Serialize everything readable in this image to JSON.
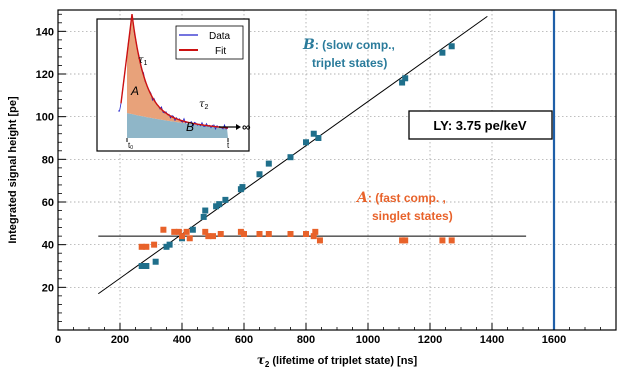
{
  "chart_data": {
    "type": "scatter",
    "xlabel_tau": "τ",
    "xlabel_sub": "2",
    "xlabel_rest": " (lifetime of triplet state) [ns]",
    "ylabel": "Integrated signal height [pe]",
    "xlim": [
      0,
      1800
    ],
    "ylim": [
      0,
      150
    ],
    "x_ticks": [
      0,
      200,
      400,
      600,
      800,
      1000,
      1200,
      1400,
      1600
    ],
    "y_ticks": [
      20,
      40,
      60,
      80,
      100,
      120,
      140
    ],
    "grid": true,
    "series": [
      {
        "name": "B",
        "color": "#1f6f8b",
        "points": [
          [
            270,
            30
          ],
          [
            285,
            30
          ],
          [
            315,
            32
          ],
          [
            350,
            39
          ],
          [
            360,
            40
          ],
          [
            400,
            43
          ],
          [
            435,
            47
          ],
          [
            470,
            53
          ],
          [
            475,
            56
          ],
          [
            510,
            58
          ],
          [
            520,
            59
          ],
          [
            540,
            61
          ],
          [
            590,
            66
          ],
          [
            595,
            67
          ],
          [
            650,
            73
          ],
          [
            680,
            78
          ],
          [
            750,
            81
          ],
          [
            800,
            88
          ],
          [
            825,
            92
          ],
          [
            840,
            90
          ],
          [
            1110,
            116
          ],
          [
            1120,
            118
          ],
          [
            1240,
            130
          ],
          [
            1270,
            133
          ]
        ]
      },
      {
        "name": "A",
        "color": "#e8622a",
        "points": [
          [
            270,
            39
          ],
          [
            285,
            39
          ],
          [
            310,
            40
          ],
          [
            340,
            47
          ],
          [
            375,
            46
          ],
          [
            390,
            46
          ],
          [
            400,
            44
          ],
          [
            415,
            46
          ],
          [
            425,
            43
          ],
          [
            475,
            46
          ],
          [
            485,
            44
          ],
          [
            500,
            44
          ],
          [
            525,
            45
          ],
          [
            590,
            46
          ],
          [
            600,
            45
          ],
          [
            650,
            45
          ],
          [
            680,
            45
          ],
          [
            750,
            45
          ],
          [
            800,
            45
          ],
          [
            825,
            44
          ],
          [
            830,
            46
          ],
          [
            845,
            42
          ],
          [
            1110,
            42
          ],
          [
            1120,
            42
          ],
          [
            1240,
            42
          ],
          [
            1270,
            42
          ]
        ]
      }
    ],
    "fit_lines": [
      {
        "color": "#000000",
        "from": [
          130,
          17
        ],
        "to": [
          1385,
          147
        ]
      },
      {
        "color": "#000000",
        "from": [
          130,
          44
        ],
        "to": [
          1510,
          44
        ]
      }
    ],
    "vline": {
      "x": 1600,
      "color": "#1f5fa8"
    },
    "annotations": {
      "b_letter": "B",
      "b_rest": ": (slow comp.,",
      "b_line2": "triplet states)",
      "a_letter": "A",
      "a_rest": ": (fast comp. ,",
      "a_line2": "singlet states)",
      "ly_box": "LY: 3.75 pe/keV"
    },
    "inset": {
      "legend": [
        {
          "label": "Data",
          "color": "#2222cc"
        },
        {
          "label": "Fit",
          "color": "#cc1111"
        }
      ],
      "label_tau1_sym": "τ",
      "label_tau1_sub": "1",
      "label_tau2_sym": "τ",
      "label_tau2_sub": "2",
      "label_A": "A",
      "label_B": "B",
      "label_inf": "∞",
      "label_t0": "t",
      "label_t0_sub": "0",
      "label_t": "t",
      "fill_fast": "#e8a27a",
      "fill_slow": "#8fb6c8"
    }
  }
}
